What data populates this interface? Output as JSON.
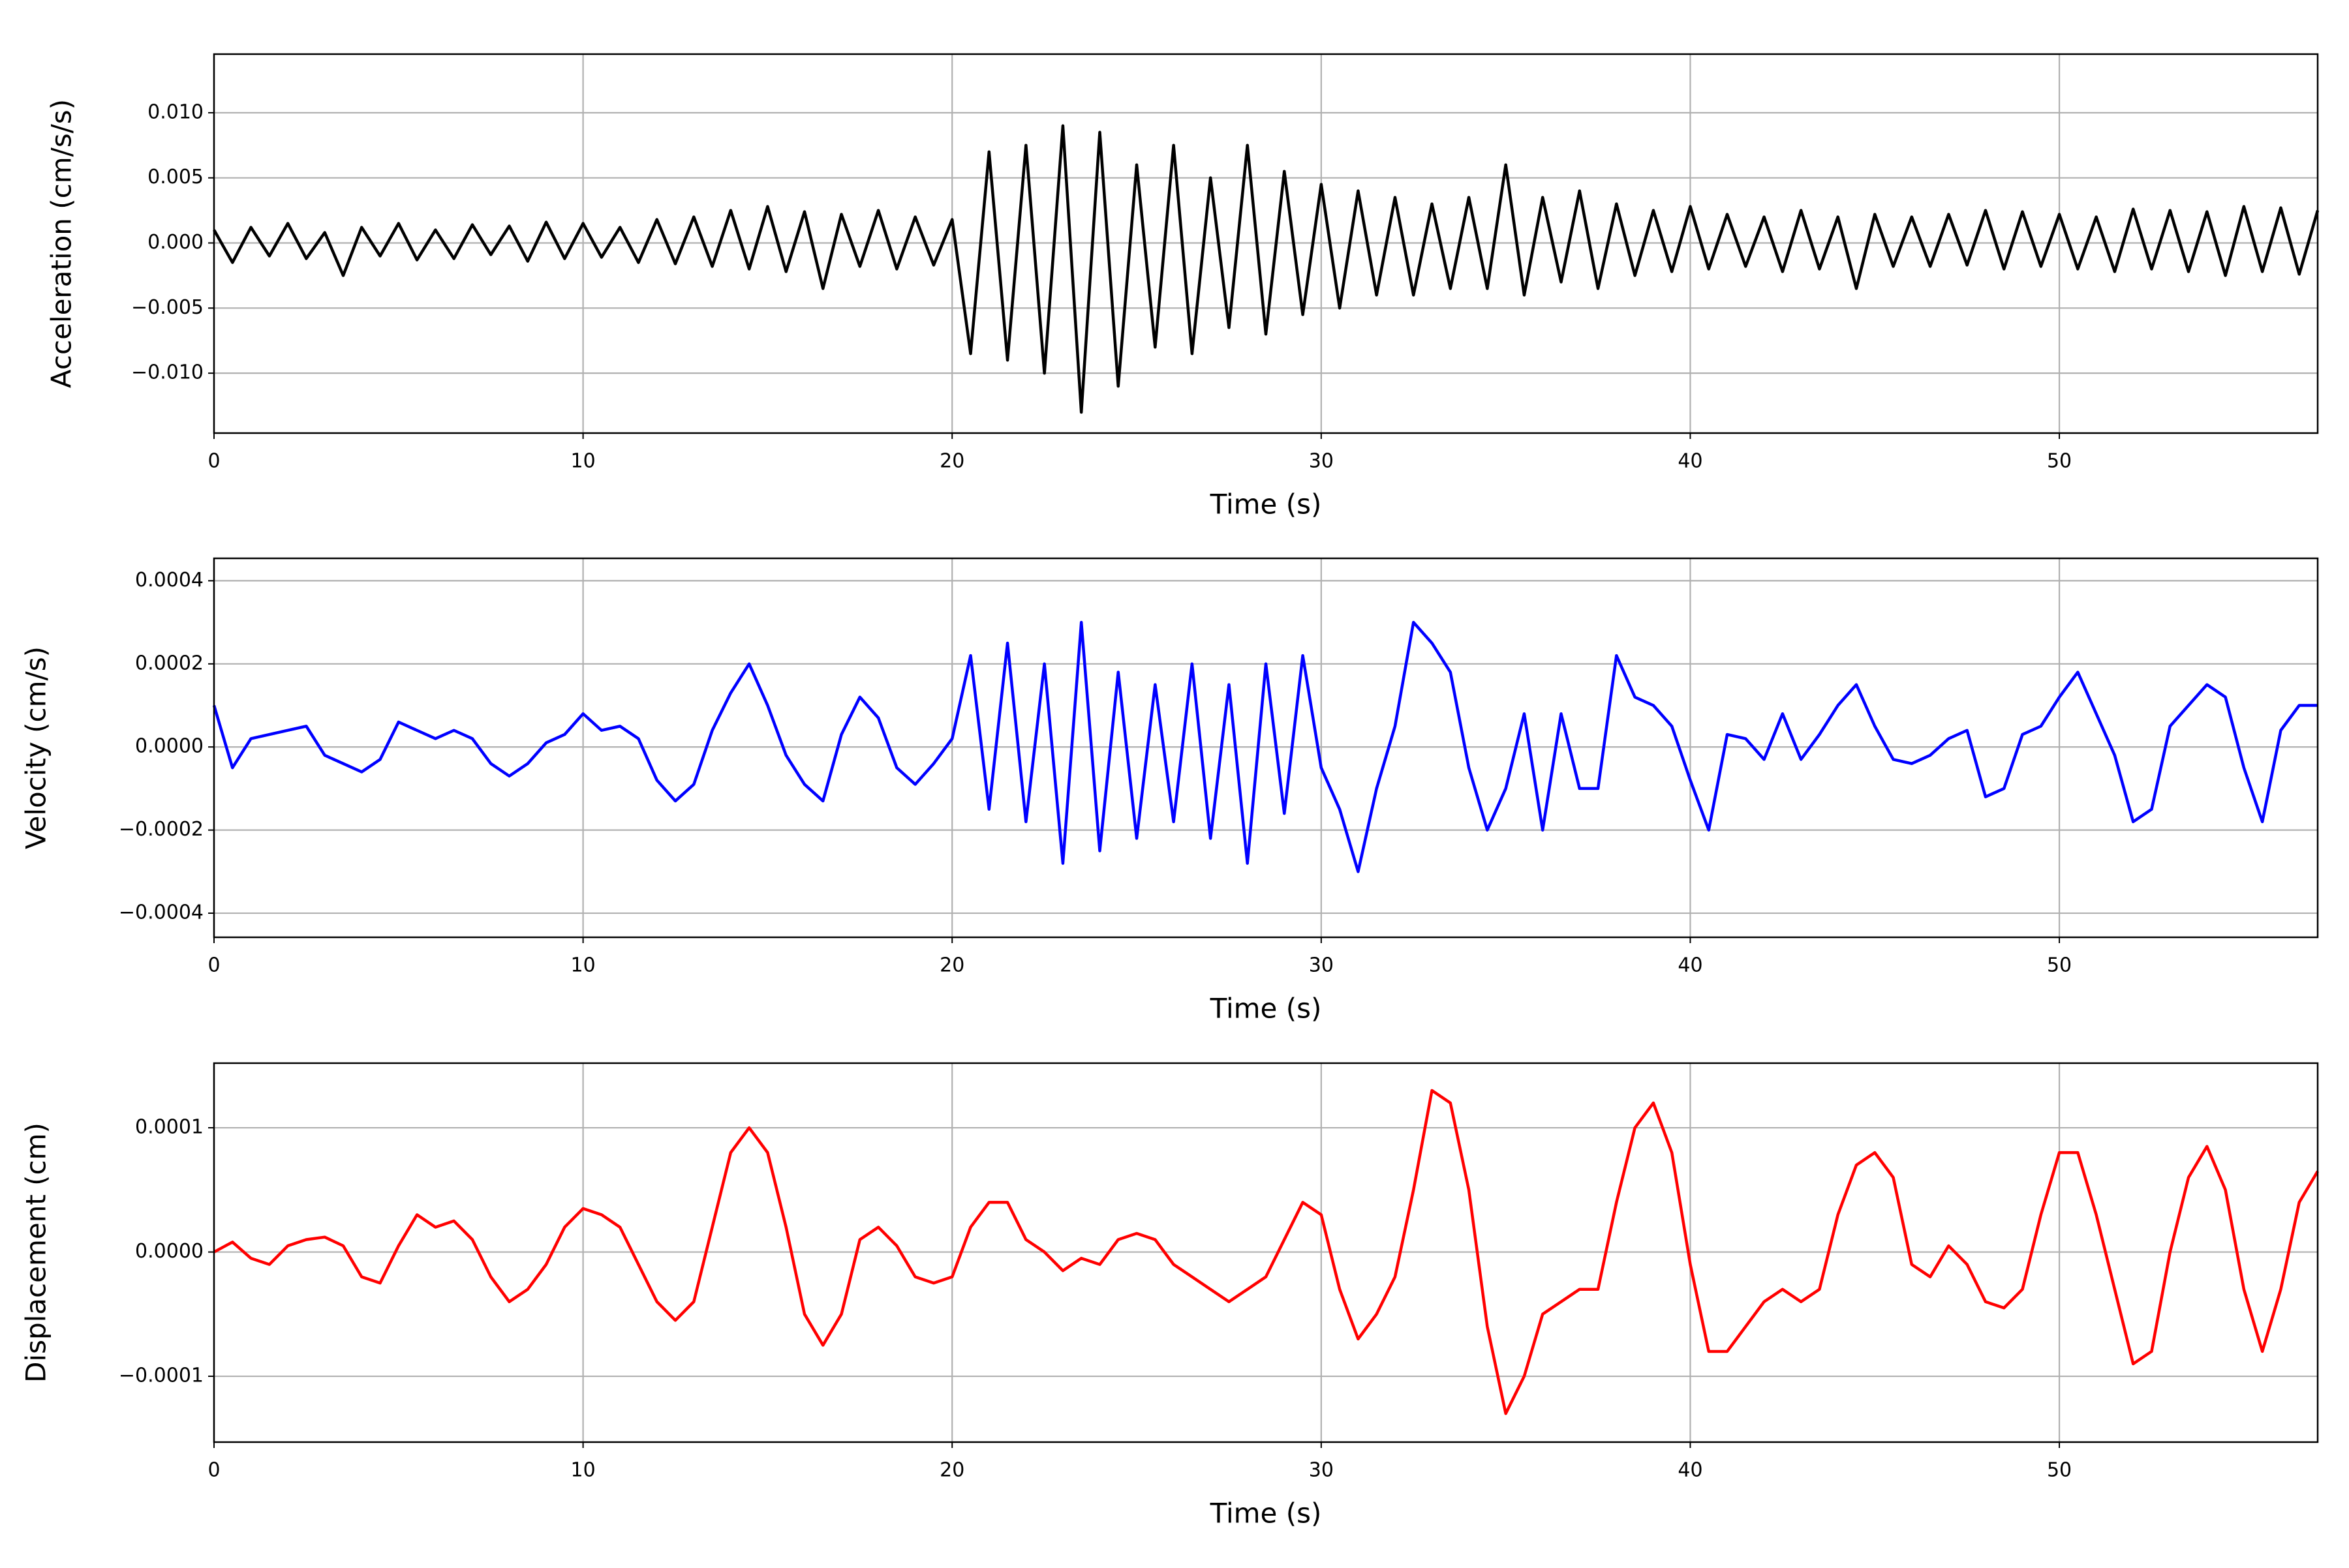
{
  "chart_data": [
    {
      "type": "line",
      "ylabel": "Acceleration (cm/s/s)",
      "xlabel": "Time (s)",
      "x": [
        0,
        0.5,
        1,
        1.5,
        2,
        2.5,
        3,
        3.5,
        4,
        4.5,
        5,
        5.5,
        6,
        6.5,
        7,
        7.5,
        8,
        8.5,
        9,
        9.5,
        10,
        10.5,
        11,
        11.5,
        12,
        12.5,
        13,
        13.5,
        14,
        14.5,
        15,
        15.5,
        16,
        16.5,
        17,
        17.5,
        18,
        18.5,
        19,
        19.5,
        20,
        20.5,
        21,
        21.5,
        22,
        22.5,
        23,
        23.5,
        24,
        24.5,
        25,
        25.5,
        26,
        26.5,
        27,
        27.5,
        28,
        28.5,
        29,
        29.5,
        30,
        30.5,
        31,
        31.5,
        32,
        32.5,
        33,
        33.5,
        34,
        34.5,
        35,
        35.5,
        36,
        36.5,
        37,
        37.5,
        38,
        38.5,
        39,
        39.5,
        40,
        40.5,
        41,
        41.5,
        42,
        42.5,
        43,
        43.5,
        44,
        44.5,
        45,
        45.5,
        46,
        46.5,
        47,
        47.5,
        48,
        48.5,
        49,
        49.5,
        50,
        50.5,
        51,
        51.5,
        52,
        52.5,
        53,
        53.5,
        54,
        54.5,
        55,
        55.5,
        56,
        56.5,
        57
      ],
      "series": [
        {
          "color": "#000000",
          "values": [
            0.001,
            -0.0015,
            0.0012,
            -0.001,
            0.0015,
            -0.0012,
            0.0008,
            -0.0025,
            0.0012,
            -0.001,
            0.0015,
            -0.0013,
            0.001,
            -0.0012,
            0.0014,
            -0.0009,
            0.0013,
            -0.0014,
            0.0016,
            -0.0012,
            0.0015,
            -0.0011,
            0.0012,
            -0.0015,
            0.0018,
            -0.0016,
            0.002,
            -0.0018,
            0.0025,
            -0.002,
            0.0028,
            -0.0022,
            0.0024,
            -0.0035,
            0.0022,
            -0.0018,
            0.0025,
            -0.002,
            0.002,
            -0.0017,
            0.0018,
            -0.0085,
            0.007,
            -0.009,
            0.0075,
            -0.01,
            0.009,
            -0.013,
            0.0085,
            -0.011,
            0.006,
            -0.008,
            0.0075,
            -0.0085,
            0.005,
            -0.0065,
            0.0075,
            -0.007,
            0.0055,
            -0.0055,
            0.0045,
            -0.005,
            0.004,
            -0.004,
            0.0035,
            -0.004,
            0.003,
            -0.0035,
            0.0035,
            -0.0035,
            0.006,
            -0.004,
            0.0035,
            -0.003,
            0.004,
            -0.0035,
            0.003,
            -0.0025,
            0.0025,
            -0.0022,
            0.0028,
            -0.002,
            0.0022,
            -0.0018,
            0.002,
            -0.0022,
            0.0025,
            -0.002,
            0.002,
            -0.0035,
            0.0022,
            -0.0018,
            0.002,
            -0.0018,
            0.0022,
            -0.0017,
            0.0025,
            -0.002,
            0.0024,
            -0.0018,
            0.0022,
            -0.002,
            0.002,
            -0.0022,
            0.0026,
            -0.002,
            0.0025,
            -0.0022,
            0.0024,
            -0.0025,
            0.0028,
            -0.0022,
            0.0027,
            -0.0024,
            0.0025
          ]
        }
      ],
      "xlim": [
        0,
        57
      ],
      "xticks": [
        0,
        10,
        20,
        30,
        40,
        50
      ],
      "ylim": [
        -0.0146,
        0.0145
      ],
      "yticks": [
        {
          "value": -0.01,
          "label": "−0.010"
        },
        {
          "value": -0.005,
          "label": "−0.005"
        },
        {
          "value": 0,
          "label": "0.000"
        },
        {
          "value": 0.005,
          "label": "0.005"
        },
        {
          "value": 0.01,
          "label": "0.010"
        }
      ],
      "grid": true
    },
    {
      "type": "line",
      "ylabel": "Velocity (cm/s)",
      "xlabel": "Time (s)",
      "x": [
        0,
        0.5,
        1,
        1.5,
        2,
        2.5,
        3,
        3.5,
        4,
        4.5,
        5,
        5.5,
        6,
        6.5,
        7,
        7.5,
        8,
        8.5,
        9,
        9.5,
        10,
        10.5,
        11,
        11.5,
        12,
        12.5,
        13,
        13.5,
        14,
        14.5,
        15,
        15.5,
        16,
        16.5,
        17,
        17.5,
        18,
        18.5,
        19,
        19.5,
        20,
        20.5,
        21,
        21.5,
        22,
        22.5,
        23,
        23.5,
        24,
        24.5,
        25,
        25.5,
        26,
        26.5,
        27,
        27.5,
        28,
        28.5,
        29,
        29.5,
        30,
        30.5,
        31,
        31.5,
        32,
        32.5,
        33,
        33.5,
        34,
        34.5,
        35,
        35.5,
        36,
        36.5,
        37,
        37.5,
        38,
        38.5,
        39,
        39.5,
        40,
        40.5,
        41,
        41.5,
        42,
        42.5,
        43,
        43.5,
        44,
        44.5,
        45,
        45.5,
        46,
        46.5,
        47,
        47.5,
        48,
        48.5,
        49,
        49.5,
        50,
        50.5,
        51,
        51.5,
        52,
        52.5,
        53,
        53.5,
        54,
        54.5,
        55,
        55.5,
        56,
        56.5,
        57
      ],
      "series": [
        {
          "color": "#0000ff",
          "values": [
            0.0001,
            -5e-05,
            2e-05,
            3e-05,
            4e-05,
            5e-05,
            -2e-05,
            -4e-05,
            -6e-05,
            -3e-05,
            6e-05,
            4e-05,
            2e-05,
            4e-05,
            2e-05,
            -4e-05,
            -7e-05,
            -4e-05,
            1e-05,
            3e-05,
            8e-05,
            4e-05,
            5e-05,
            2e-05,
            -8e-05,
            -0.00013,
            -9e-05,
            4e-05,
            0.00013,
            0.0002,
            0.0001,
            -2e-05,
            -9e-05,
            -0.00013,
            3e-05,
            0.00012,
            7e-05,
            -5e-05,
            -9e-05,
            -4e-05,
            2e-05,
            0.00022,
            -0.00015,
            0.00025,
            -0.00018,
            0.0002,
            -0.00028,
            0.0003,
            -0.00025,
            0.00018,
            -0.00022,
            0.00015,
            -0.00018,
            0.0002,
            -0.00022,
            0.00015,
            -0.00028,
            0.0002,
            -0.00016,
            0.00022,
            -5e-05,
            -0.00015,
            -0.0003,
            -0.0001,
            5e-05,
            0.0003,
            0.00025,
            0.00018,
            -5e-05,
            -0.0002,
            -0.0001,
            8e-05,
            -0.0002,
            8e-05,
            -0.0001,
            -0.0001,
            0.00022,
            0.00012,
            0.0001,
            5e-05,
            -8e-05,
            -0.0002,
            3e-05,
            2e-05,
            -3e-05,
            8e-05,
            -3e-05,
            3e-05,
            0.0001,
            0.00015,
            5e-05,
            -3e-05,
            -4e-05,
            -2e-05,
            2e-05,
            4e-05,
            -0.00012,
            -0.0001,
            3e-05,
            5e-05,
            0.00012,
            0.00018,
            8e-05,
            -2e-05,
            -0.00018,
            -0.00015,
            5e-05,
            0.0001,
            0.00015,
            0.00012,
            -5e-05,
            -0.00018,
            4e-05,
            0.0001,
            0.0001
          ]
        }
      ],
      "xlim": [
        0,
        57
      ],
      "xticks": [
        0,
        10,
        20,
        30,
        40,
        50
      ],
      "ylim": [
        -0.000458,
        0.000454
      ],
      "yticks": [
        {
          "value": -0.0004,
          "label": "−0.0004"
        },
        {
          "value": -0.0002,
          "label": "−0.0002"
        },
        {
          "value": 0,
          "label": "0.0000"
        },
        {
          "value": 0.0002,
          "label": "0.0002"
        },
        {
          "value": 0.0004,
          "label": "0.0004"
        }
      ],
      "grid": true
    },
    {
      "type": "line",
      "ylabel": "Displacement (cm)",
      "xlabel": "Time (s)",
      "x": [
        0,
        0.5,
        1,
        1.5,
        2,
        2.5,
        3,
        3.5,
        4,
        4.5,
        5,
        5.5,
        6,
        6.5,
        7,
        7.5,
        8,
        8.5,
        9,
        9.5,
        10,
        10.5,
        11,
        11.5,
        12,
        12.5,
        13,
        13.5,
        14,
        14.5,
        15,
        15.5,
        16,
        16.5,
        17,
        17.5,
        18,
        18.5,
        19,
        19.5,
        20,
        20.5,
        21,
        21.5,
        22,
        22.5,
        23,
        23.5,
        24,
        24.5,
        25,
        25.5,
        26,
        26.5,
        27,
        27.5,
        28,
        28.5,
        29,
        29.5,
        30,
        30.5,
        31,
        31.5,
        32,
        32.5,
        33,
        33.5,
        34,
        34.5,
        35,
        35.5,
        36,
        36.5,
        37,
        37.5,
        38,
        38.5,
        39,
        39.5,
        40,
        40.5,
        41,
        41.5,
        42,
        42.5,
        43,
        43.5,
        44,
        44.5,
        45,
        45.5,
        46,
        46.5,
        47,
        47.5,
        48,
        48.5,
        49,
        49.5,
        50,
        50.5,
        51,
        51.5,
        52,
        52.5,
        53,
        53.5,
        54,
        54.5,
        55,
        55.5,
        56,
        56.5,
        57
      ],
      "series": [
        {
          "color": "#ff0000",
          "values": [
            0,
            8e-06,
            -5e-06,
            -1e-05,
            5e-06,
            1e-05,
            1.2e-05,
            5e-06,
            -2e-05,
            -2.5e-05,
            5e-06,
            3e-05,
            2e-05,
            2.5e-05,
            1e-05,
            -2e-05,
            -4e-05,
            -3e-05,
            -1e-05,
            2e-05,
            3.5e-05,
            3e-05,
            2e-05,
            -1e-05,
            -4e-05,
            -5.5e-05,
            -4e-05,
            2e-05,
            8e-05,
            0.0001,
            8e-05,
            2e-05,
            -5e-05,
            -7.5e-05,
            -5e-05,
            1e-05,
            2e-05,
            5e-06,
            -2e-05,
            -2.5e-05,
            -2e-05,
            2e-05,
            4e-05,
            4e-05,
            1e-05,
            0,
            -1.5e-05,
            -5e-06,
            -1e-05,
            1e-05,
            1.5e-05,
            1e-05,
            -1e-05,
            -2e-05,
            -3e-05,
            -4e-05,
            -3e-05,
            -2e-05,
            1e-05,
            4e-05,
            3e-05,
            -3e-05,
            -7e-05,
            -5e-05,
            -2e-05,
            5e-05,
            0.00013,
            0.00012,
            5e-05,
            -6e-05,
            -0.00013,
            -0.0001,
            -5e-05,
            -4e-05,
            -3e-05,
            -3e-05,
            4e-05,
            0.0001,
            0.00012,
            8e-05,
            -1e-05,
            -8e-05,
            -8e-05,
            -6e-05,
            -4e-05,
            -3e-05,
            -4e-05,
            -3e-05,
            3e-05,
            7e-05,
            8e-05,
            6e-05,
            -1e-05,
            -2e-05,
            5e-06,
            -1e-05,
            -4e-05,
            -4.5e-05,
            -3e-05,
            3e-05,
            8e-05,
            8e-05,
            3e-05,
            -3e-05,
            -9e-05,
            -8e-05,
            0,
            6e-05,
            8.5e-05,
            5e-05,
            -3e-05,
            -8e-05,
            -3e-05,
            4e-05,
            6.5e-05
          ]
        }
      ],
      "xlim": [
        0,
        57
      ],
      "xticks": [
        0,
        10,
        20,
        30,
        40,
        50
      ],
      "ylim": [
        -0.000153,
        0.000152
      ],
      "yticks": [
        {
          "value": -0.0001,
          "label": "−0.0001"
        },
        {
          "value": 0,
          "label": "0.0000"
        },
        {
          "value": 0.0001,
          "label": "0.0001"
        }
      ],
      "grid": true
    }
  ]
}
